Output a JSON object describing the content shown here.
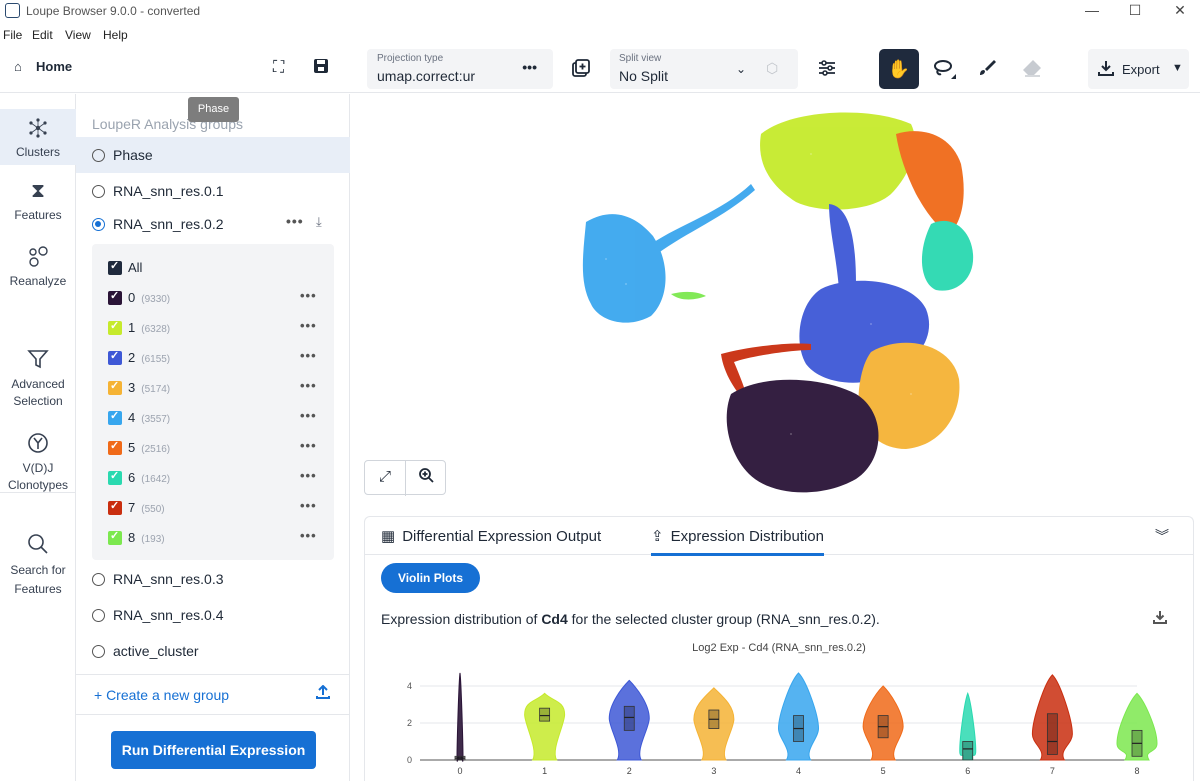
{
  "window": {
    "title": "Loupe Browser 9.0.0 - converted",
    "minimize": "—",
    "maximize": "☐",
    "close": "✕"
  },
  "menu": [
    "File",
    "Edit",
    "View",
    "Help"
  ],
  "toolbar": {
    "home_label": "Home",
    "projection_label": "Projection type",
    "projection_value": "umap.correct:ur",
    "split_label": "Split view",
    "split_value": "No Split",
    "export_label": "Export"
  },
  "leftnav": [
    {
      "label": "Clusters",
      "icon": "clusters-icon"
    },
    {
      "label": "Features",
      "icon": "features-icon"
    },
    {
      "label": "Reanalyze",
      "icon": "reanalyze-icon"
    },
    {
      "label": "Advanced\nSelection",
      "icon": "filter-icon"
    },
    {
      "label": "V(D)J\nClonotypes",
      "icon": "clonotype-icon"
    },
    {
      "label": "Search for\nFeatures",
      "icon": "search-icon"
    }
  ],
  "panel": {
    "heading": "LoupeR Analysis groups",
    "tooltip": "Phase",
    "groups": [
      "Phase",
      "RNA_snn_res.0.1",
      "RNA_snn_res.0.2",
      "RNA_snn_res.0.3",
      "RNA_snn_res.0.4",
      "active_cluster"
    ],
    "all_label": "All",
    "clusters": [
      {
        "name": "0",
        "count": "(9330)",
        "color": "#2a1437"
      },
      {
        "name": "1",
        "count": "(6328)",
        "color": "#c6ea2c"
      },
      {
        "name": "2",
        "count": "(6155)",
        "color": "#3e58d6"
      },
      {
        "name": "3",
        "count": "(5174)",
        "color": "#f5b335"
      },
      {
        "name": "4",
        "count": "(3557)",
        "color": "#37a6ee"
      },
      {
        "name": "5",
        "count": "(2516)",
        "color": "#f06a19"
      },
      {
        "name": "6",
        "count": "(1642)",
        "color": "#2ad9b0"
      },
      {
        "name": "7",
        "count": "(550)",
        "color": "#c92e0f"
      },
      {
        "name": "8",
        "count": "(193)",
        "color": "#7ce84f"
      }
    ],
    "create_group": "+ Create a new group",
    "run_button": "Run Differential Expression"
  },
  "bottom": {
    "tab_de": "Differential Expression Output",
    "tab_ed": "Expression Distribution",
    "violin_button": "Violin Plots",
    "desc_prefix": "Expression distribution of ",
    "gene": "Cd4",
    "desc_suffix": " for the selected cluster group (RNA_snn_res.0.2)."
  },
  "chart_data": {
    "type": "violin",
    "title": "Log2 Exp - Cd4 (RNA_snn_res.0.2)",
    "categories": [
      "0",
      "1",
      "2",
      "3",
      "4",
      "5",
      "6",
      "7",
      "8"
    ],
    "y_ticks": [
      "0",
      "2",
      "4"
    ],
    "ylim": [
      0,
      4.7
    ],
    "max": [
      4.7,
      3.6,
      4.3,
      3.9,
      5.2,
      4.0,
      3.6,
      4.6,
      3.6
    ],
    "median": [
      0.1,
      2.4,
      2.3,
      2.2,
      1.7,
      1.8,
      0.6,
      1.0,
      0.9
    ],
    "q1": [
      0,
      2.1,
      1.6,
      1.7,
      1.0,
      1.2,
      0,
      0.3,
      0.2
    ],
    "q3": [
      0.2,
      2.8,
      2.9,
      2.7,
      2.4,
      2.4,
      1.0,
      2.5,
      1.6
    ],
    "colors": [
      "#2a1437",
      "#c6ea2c",
      "#3e58d6",
      "#f5b335",
      "#37a6ee",
      "#f06a19",
      "#2ad9b0",
      "#c92e0f",
      "#7ce84f"
    ]
  }
}
